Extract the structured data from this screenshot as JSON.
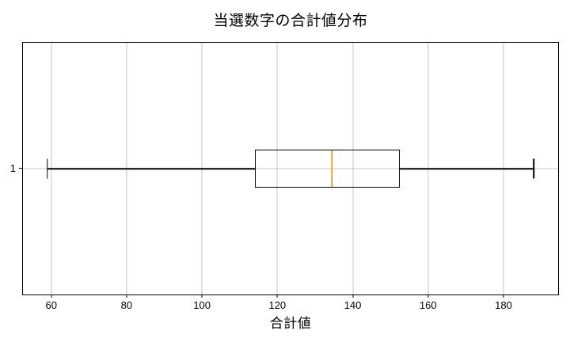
{
  "chart_data": {
    "type": "boxplot",
    "orientation": "horizontal",
    "title": "当選数字の合計値分布",
    "xlabel": "合計値",
    "ytick_label": "1",
    "whisker_low": 59,
    "q1": 114,
    "median": 134.5,
    "q3": 152.5,
    "whisker_high": 188,
    "xticks": [
      60,
      80,
      100,
      120,
      140,
      160,
      180
    ],
    "xlim": [
      52.5,
      194.5
    ],
    "grid": true,
    "legend": false,
    "colors": {
      "box_line": "#000000",
      "median_line": "#e0a13e",
      "grid_line": "#c6c6c6",
      "spine": "#000000",
      "background": "#ffffff"
    }
  }
}
